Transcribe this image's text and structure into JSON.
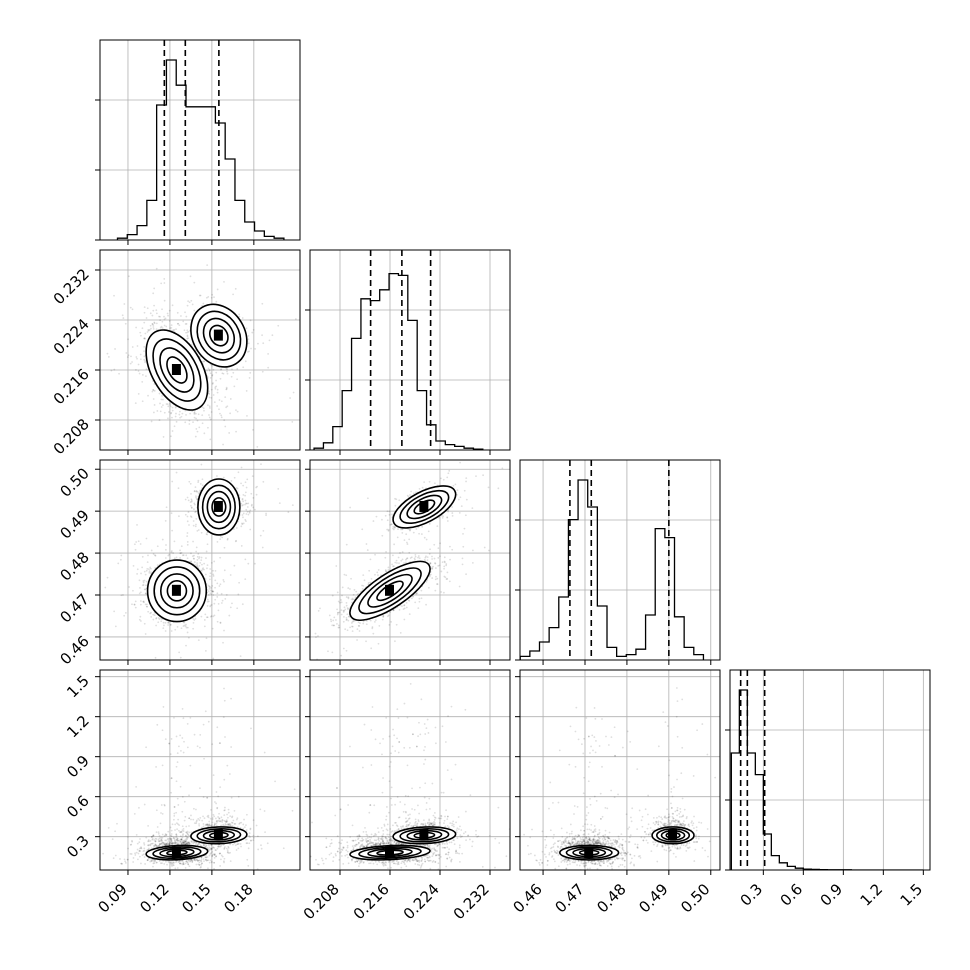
{
  "chart_data": {
    "type": "corner",
    "parameters": [
      {
        "ticks": [
          0.09,
          0.12,
          0.15,
          0.18
        ],
        "tick_labels": [
          "0.09",
          "0.12",
          "0.15",
          "0.18"
        ],
        "range": [
          0.07,
          0.213
        ]
      },
      {
        "ticks": [
          0.208,
          0.216,
          0.224,
          0.232
        ],
        "tick_labels": [
          "0.208",
          "0.216",
          "0.224",
          "0.232"
        ],
        "range": [
          0.2032,
          0.2352
        ]
      },
      {
        "ticks": [
          0.46,
          0.47,
          0.48,
          0.49,
          0.5
        ],
        "tick_labels": [
          "0.46",
          "0.47",
          "0.48",
          "0.49",
          "0.50"
        ],
        "range": [
          0.4545,
          0.5022
        ]
      },
      {
        "ticks": [
          0.3,
          0.6,
          0.9,
          1.2,
          1.5
        ],
        "tick_labels": [
          "0.3",
          "0.6",
          "0.9",
          "1.2",
          "1.5"
        ],
        "range": [
          0.05,
          1.55
        ]
      }
    ],
    "histograms": [
      {
        "x": [
          0.086,
          0.093,
          0.1,
          0.107,
          0.114,
          0.121,
          0.128,
          0.135,
          0.142,
          0.149,
          0.156,
          0.163,
          0.17,
          0.177,
          0.184,
          0.191,
          0.198
        ],
        "counts": [
          0.01,
          0.03,
          0.08,
          0.22,
          0.75,
          1.0,
          0.86,
          0.74,
          0.74,
          0.74,
          0.65,
          0.45,
          0.22,
          0.1,
          0.05,
          0.02,
          0.01
        ],
        "quantiles": [
          0.116,
          0.131,
          0.155
        ]
      },
      {
        "x": [
          0.2046,
          0.2061,
          0.2076,
          0.2091,
          0.2106,
          0.2121,
          0.2136,
          0.2151,
          0.2166,
          0.2181,
          0.2196,
          0.2211,
          0.2226,
          0.2241,
          0.2256,
          0.2271,
          0.2286,
          0.2301
        ],
        "counts": [
          0.01,
          0.04,
          0.13,
          0.33,
          0.62,
          0.84,
          0.83,
          0.89,
          0.98,
          0.97,
          0.72,
          0.33,
          0.14,
          0.05,
          0.03,
          0.02,
          0.01,
          0.005
        ],
        "quantiles": [
          0.2129,
          0.2179,
          0.2225
        ]
      },
      {
        "x": [
          0.4557,
          0.458,
          0.4603,
          0.4626,
          0.4649,
          0.4672,
          0.4695,
          0.4718,
          0.4741,
          0.4764,
          0.4787,
          0.481,
          0.4833,
          0.4856,
          0.4879,
          0.4902,
          0.4925,
          0.4948,
          0.4971
        ],
        "counts": [
          0.02,
          0.05,
          0.1,
          0.18,
          0.35,
          0.78,
          1.0,
          0.85,
          0.3,
          0.07,
          0.02,
          0.03,
          0.06,
          0.25,
          0.73,
          0.68,
          0.24,
          0.07,
          0.03
        ],
        "quantiles": [
          0.4664,
          0.4715,
          0.49
        ]
      },
      {
        "x": [
          0.09,
          0.15,
          0.21,
          0.27,
          0.33,
          0.39,
          0.45,
          0.51,
          0.57,
          0.63,
          0.69,
          0.75,
          0.81,
          0.87,
          0.93,
          0.99,
          1.05,
          1.11,
          1.17,
          1.23,
          1.29,
          1.35,
          1.41,
          1.47
        ],
        "counts": [
          0.65,
          1.0,
          0.65,
          0.53,
          0.2,
          0.08,
          0.04,
          0.02,
          0.01,
          0.005,
          0.003,
          0.002,
          0.001,
          0.001,
          0.001,
          0,
          0,
          0,
          0,
          0,
          0,
          0,
          0,
          0
        ],
        "quantiles": [
          0.13,
          0.18,
          0.31
        ]
      }
    ],
    "modes": [
      {
        "mean": [
          0.125,
          0.216,
          0.471,
          0.18
        ],
        "sd": [
          0.011,
          0.0032,
          0.0035,
          0.06
        ],
        "weight": 0.72
      },
      {
        "mean": [
          0.155,
          0.2215,
          0.491,
          0.31
        ],
        "sd": [
          0.01,
          0.0025,
          0.0025,
          0.07
        ],
        "weight": 0.28
      }
    ],
    "contour_levels": [
      0.5,
      1.0,
      1.5,
      2.0
    ]
  }
}
